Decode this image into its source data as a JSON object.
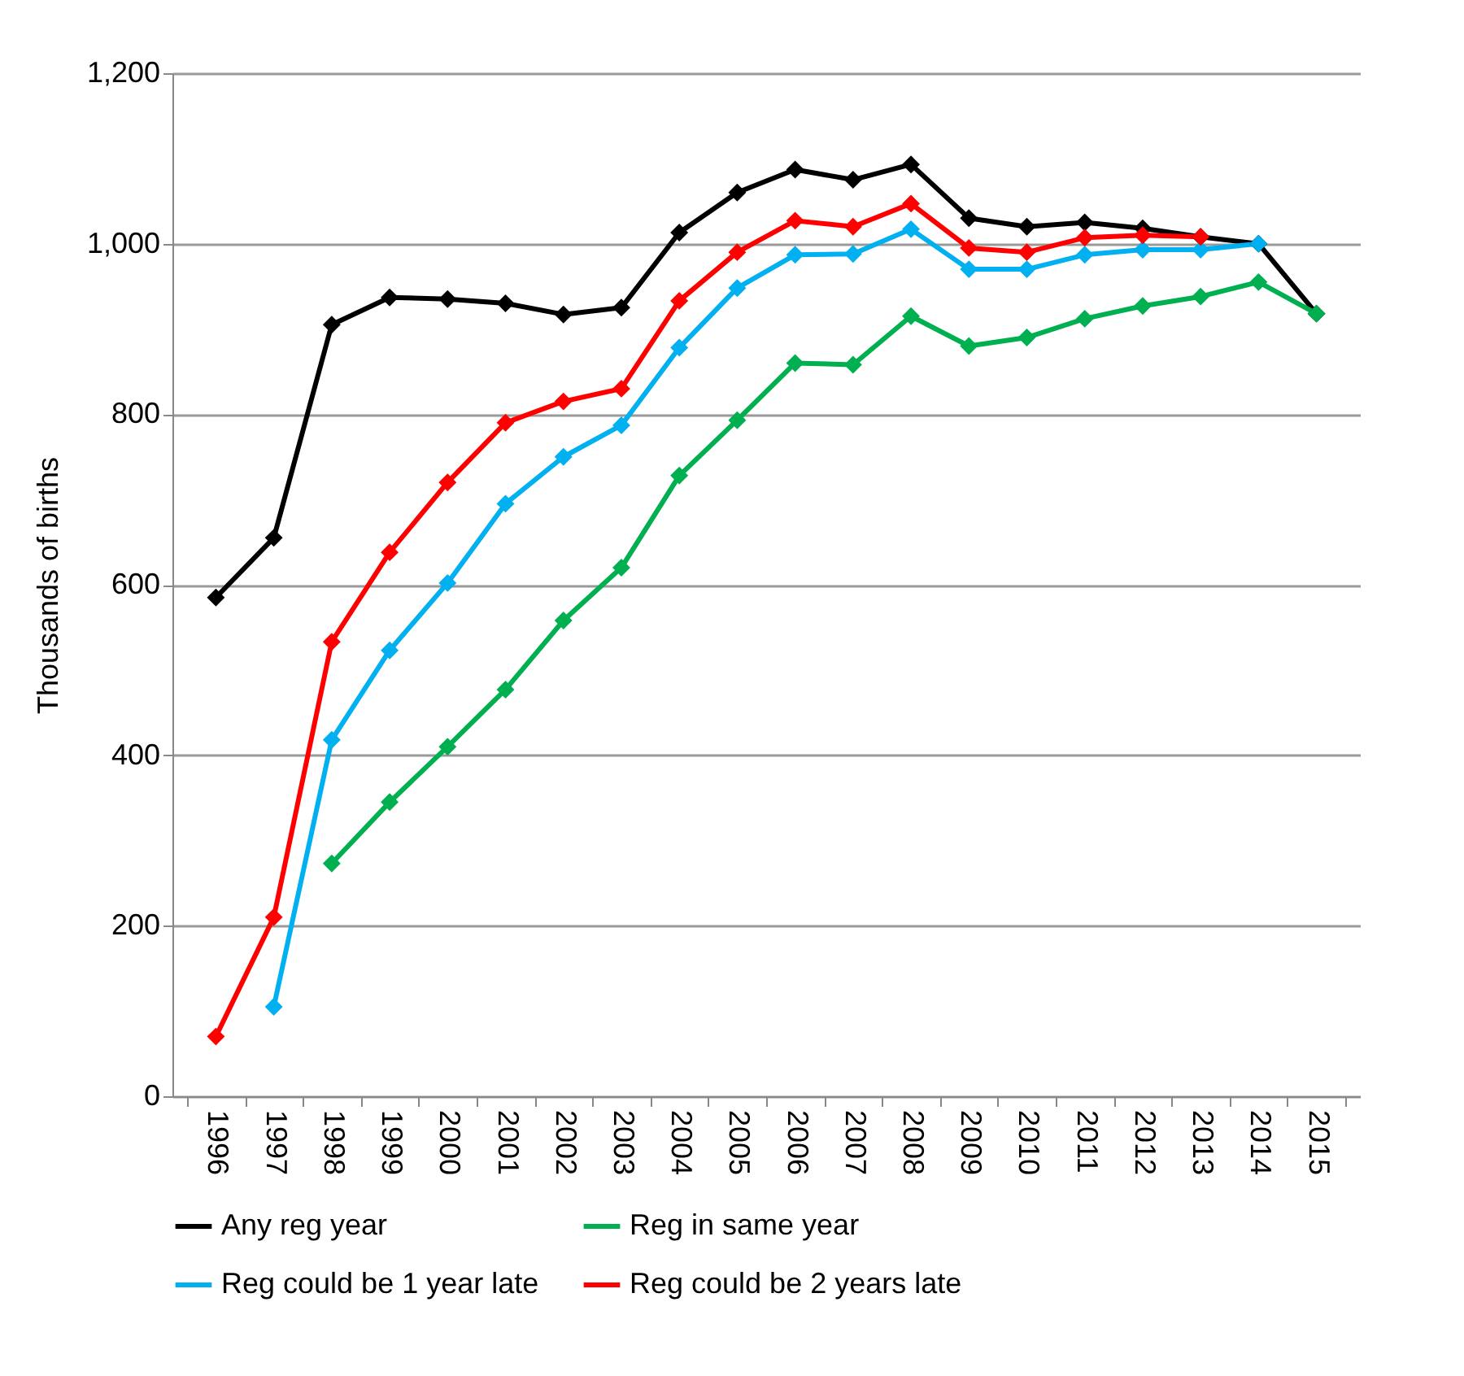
{
  "chart_data": {
    "type": "line",
    "ylabel": "Thousands of births",
    "categories": [
      "1996",
      "1997",
      "1998",
      "1999",
      "2000",
      "2001",
      "2002",
      "2003",
      "2004",
      "2005",
      "2006",
      "2007",
      "2008",
      "2009",
      "2010",
      "2011",
      "2012",
      "2013",
      "2014",
      "2015"
    ],
    "series": [
      {
        "name": "Any reg year",
        "color": "#000000",
        "values": [
          585,
          655,
          905,
          937,
          935,
          930,
          917,
          925,
          1013,
          1060,
          1087,
          1075,
          1093,
          1030,
          1020,
          1025,
          1018,
          1008,
          1000,
          918
        ]
      },
      {
        "name": "Reg in same year",
        "color": "#00b050",
        "values": [
          null,
          null,
          273,
          345,
          410,
          477,
          558,
          620,
          728,
          793,
          860,
          858,
          915,
          880,
          890,
          912,
          927,
          938,
          955,
          918
        ]
      },
      {
        "name": "Reg could be 1 year late",
        "color": "#00b0f0",
        "values": [
          null,
          105,
          418,
          523,
          602,
          695,
          750,
          787,
          878,
          948,
          987,
          988,
          1017,
          970,
          970,
          987,
          993,
          993,
          1000,
          null
        ]
      },
      {
        "name": "Reg could be 2 years late",
        "color": "#ff0000",
        "values": [
          70,
          210,
          533,
          638,
          720,
          790,
          815,
          830,
          933,
          990,
          1027,
          1020,
          1047,
          995,
          990,
          1007,
          1010,
          1008,
          null,
          null
        ]
      }
    ],
    "ylim": [
      0,
      1200
    ],
    "yticks": [
      0,
      200,
      400,
      600,
      800,
      {
        "value": 1000,
        "label": "1,000"
      },
      {
        "value": 1200,
        "label": "1,200"
      }
    ],
    "grid": "y",
    "legend": "bottom",
    "marker": "diamond",
    "line_style": "solid"
  }
}
